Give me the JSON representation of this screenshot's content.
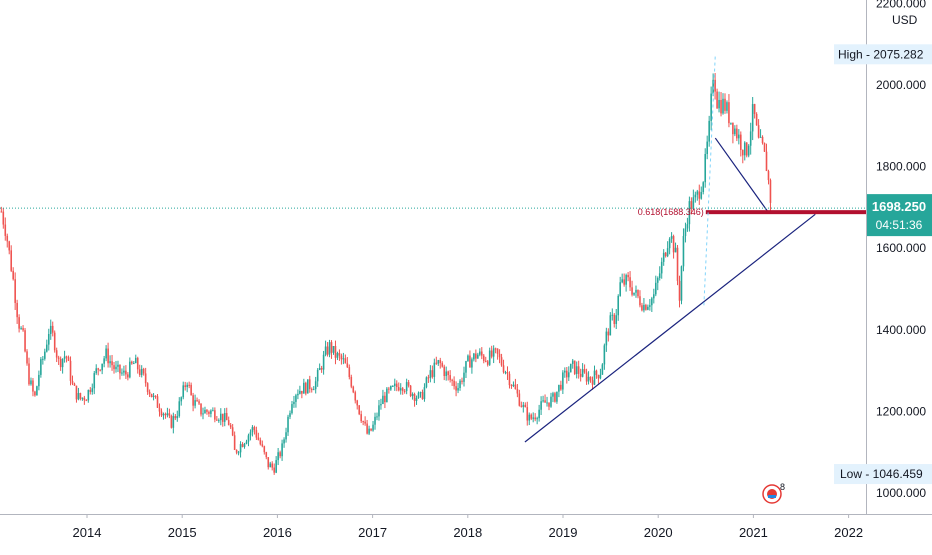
{
  "chart_data": {
    "type": "candlestick",
    "currency": "USD",
    "y_ticks": [
      {
        "value": 1000,
        "label": "1000.000"
      },
      {
        "value": 1200,
        "label": "1200.000"
      },
      {
        "value": 1400,
        "label": "1400.000"
      },
      {
        "value": 1600,
        "label": "1600.000"
      },
      {
        "value": 1800,
        "label": "1800.000"
      },
      {
        "value": 2000,
        "label": "2000.000"
      },
      {
        "value": 2200,
        "label": "2200.000"
      }
    ],
    "x_ticks": [
      {
        "year": 2014,
        "label": "2014"
      },
      {
        "year": 2015,
        "label": "2015"
      },
      {
        "year": 2016,
        "label": "2016"
      },
      {
        "year": 2017,
        "label": "2017"
      },
      {
        "year": 2018,
        "label": "2018"
      },
      {
        "year": 2019,
        "label": "2019"
      },
      {
        "year": 2020,
        "label": "2020"
      },
      {
        "year": 2021,
        "label": "2021"
      },
      {
        "year": 2022,
        "label": "2022"
      }
    ],
    "x_range": [
      2013.1,
      2022.15
    ],
    "y_range": [
      970,
      2220
    ],
    "high": {
      "label": "High - 2075.282",
      "value": 2075.282,
      "year": 2020.6
    },
    "low": {
      "label": "Low - 1046.459",
      "value": 1046.459,
      "year": 2015.95
    },
    "last_price": {
      "label": "1698.250",
      "value": 1698.25
    },
    "countdown": {
      "label": "04:51:36"
    },
    "fib": {
      "label": "0.618(1688.346)",
      "value": 1688.346,
      "x_start": 2020.5,
      "x_end": 2022.15
    },
    "trendlines": [
      {
        "name": "support-trendline",
        "points": [
          [
            2018.6,
            1125
          ],
          [
            2021.65,
            1683
          ]
        ]
      },
      {
        "name": "drop-trendline",
        "points": [
          [
            2020.6,
            1870
          ],
          [
            2021.15,
            1690
          ]
        ]
      }
    ],
    "series_path": [
      [
        2013.1,
        1690
      ],
      [
        2013.15,
        1640
      ],
      [
        2013.22,
        1530
      ],
      [
        2013.28,
        1420
      ],
      [
        2013.33,
        1380
      ],
      [
        2013.38,
        1290
      ],
      [
        2013.45,
        1230
      ],
      [
        2013.5,
        1300
      ],
      [
        2013.55,
        1340
      ],
      [
        2013.6,
        1400
      ],
      [
        2013.65,
        1380
      ],
      [
        2013.7,
        1320
      ],
      [
        2013.78,
        1340
      ],
      [
        2013.85,
        1260
      ],
      [
        2013.92,
        1230
      ],
      [
        2014.0,
        1240
      ],
      [
        2014.1,
        1300
      ],
      [
        2014.2,
        1340
      ],
      [
        2014.3,
        1300
      ],
      [
        2014.4,
        1290
      ],
      [
        2014.5,
        1320
      ],
      [
        2014.6,
        1280
      ],
      [
        2014.7,
        1230
      ],
      [
        2014.8,
        1200
      ],
      [
        2014.88,
        1170
      ],
      [
        2014.95,
        1200
      ],
      [
        2015.05,
        1280
      ],
      [
        2015.1,
        1230
      ],
      [
        2015.2,
        1200
      ],
      [
        2015.3,
        1200
      ],
      [
        2015.4,
        1190
      ],
      [
        2015.5,
        1170
      ],
      [
        2015.55,
        1100
      ],
      [
        2015.65,
        1130
      ],
      [
        2015.75,
        1160
      ],
      [
        2015.82,
        1120
      ],
      [
        2015.9,
        1070
      ],
      [
        2015.96,
        1060
      ],
      [
        2016.05,
        1110
      ],
      [
        2016.15,
        1230
      ],
      [
        2016.2,
        1250
      ],
      [
        2016.3,
        1260
      ],
      [
        2016.4,
        1270
      ],
      [
        2016.5,
        1340
      ],
      [
        2016.55,
        1360
      ],
      [
        2016.6,
        1340
      ],
      [
        2016.7,
        1320
      ],
      [
        2016.78,
        1270
      ],
      [
        2016.85,
        1210
      ],
      [
        2016.95,
        1140
      ],
      [
        2017.0,
        1160
      ],
      [
        2017.1,
        1230
      ],
      [
        2017.2,
        1250
      ],
      [
        2017.3,
        1270
      ],
      [
        2017.4,
        1250
      ],
      [
        2017.5,
        1230
      ],
      [
        2017.6,
        1290
      ],
      [
        2017.7,
        1320
      ],
      [
        2017.8,
        1280
      ],
      [
        2017.9,
        1260
      ],
      [
        2018.0,
        1320
      ],
      [
        2018.1,
        1340
      ],
      [
        2018.2,
        1330
      ],
      [
        2018.3,
        1340
      ],
      [
        2018.4,
        1300
      ],
      [
        2018.5,
        1250
      ],
      [
        2018.6,
        1200
      ],
      [
        2018.65,
        1180
      ],
      [
        2018.7,
        1190
      ],
      [
        2018.8,
        1220
      ],
      [
        2018.9,
        1230
      ],
      [
        2019.0,
        1280
      ],
      [
        2019.1,
        1310
      ],
      [
        2019.2,
        1290
      ],
      [
        2019.3,
        1280
      ],
      [
        2019.4,
        1300
      ],
      [
        2019.45,
        1380
      ],
      [
        2019.5,
        1420
      ],
      [
        2019.55,
        1430
      ],
      [
        2019.6,
        1510
      ],
      [
        2019.68,
        1520
      ],
      [
        2019.75,
        1490
      ],
      [
        2019.85,
        1460
      ],
      [
        2019.95,
        1480
      ],
      [
        2020.05,
        1570
      ],
      [
        2020.12,
        1640
      ],
      [
        2020.18,
        1590
      ],
      [
        2020.22,
        1470
      ],
      [
        2020.26,
        1610
      ],
      [
        2020.32,
        1700
      ],
      [
        2020.4,
        1720
      ],
      [
        2020.48,
        1780
      ],
      [
        2020.54,
        1900
      ],
      [
        2020.58,
        2040
      ],
      [
        2020.62,
        1960
      ],
      [
        2020.7,
        1950
      ],
      [
        2020.75,
        1920
      ],
      [
        2020.85,
        1870
      ],
      [
        2020.92,
        1830
      ],
      [
        2020.96,
        1880
      ],
      [
        2021.0,
        1940
      ],
      [
        2021.05,
        1860
      ],
      [
        2021.1,
        1840
      ],
      [
        2021.14,
        1800
      ],
      [
        2021.18,
        1720
      ],
      [
        2021.2,
        1698
      ]
    ]
  }
}
